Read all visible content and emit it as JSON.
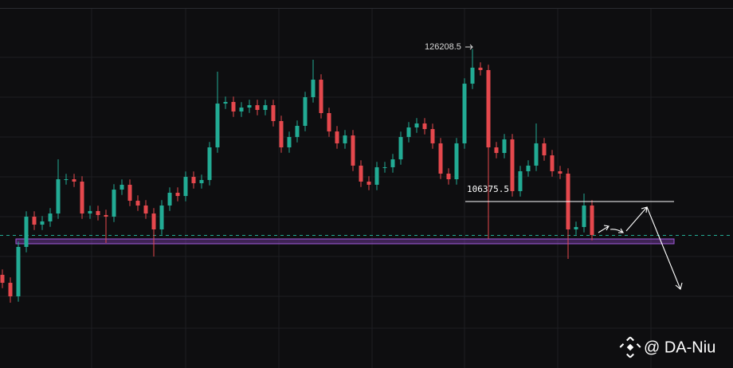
{
  "chart_data": {
    "type": "candlestick",
    "ylim": [
      84700,
      132600
    ],
    "up_color": "#22ab94",
    "down_color": "#e5484d",
    "peak": 126208.5,
    "level": 106375.5,
    "watermark": "@ DA-Niu",
    "open": [
      96830,
      95790,
      94030,
      100460,
      104400,
      103360,
      103780,
      104810,
      109270,
      109270,
      108960,
      104810,
      105130,
      104610,
      104400,
      107920,
      108550,
      106470,
      105850,
      104810,
      102740,
      105850,
      107510,
      107090,
      109580,
      108750,
      109170,
      113420,
      119120,
      119330,
      118090,
      118600,
      118910,
      118290,
      118910,
      116840,
      113420,
      114770,
      116220,
      119950,
      122230,
      117880,
      115490,
      113940,
      114970,
      111040,
      108960,
      108550,
      110830,
      110830,
      111860,
      114770,
      116010,
      116530,
      115800,
      113940,
      110000,
      109270,
      113940,
      121710,
      123790,
      123480,
      113420,
      112690,
      114460,
      107720,
      110310,
      111040,
      113940,
      112380,
      110310,
      110000,
      102740,
      103050,
      105850
    ],
    "high": [
      97530,
      96490,
      101160,
      105100,
      105100,
      104480,
      105510,
      111860,
      109970,
      109970,
      109660,
      105830,
      105830,
      105310,
      108620,
      109250,
      109250,
      107170,
      106550,
      105510,
      106550,
      108210,
      108210,
      110280,
      110280,
      109870,
      114120,
      123270,
      120030,
      120030,
      119300,
      119610,
      119610,
      119610,
      119610,
      117540,
      115470,
      116920,
      120650,
      124820,
      122930,
      118580,
      116190,
      115670,
      115670,
      111740,
      109660,
      111530,
      111530,
      112560,
      115470,
      116710,
      117230,
      117230,
      116500,
      114640,
      110700,
      114640,
      122410,
      126208.5,
      124490,
      124180,
      114120,
      115160,
      115160,
      111010,
      111740,
      116530,
      114640,
      113080,
      111010,
      110700,
      103750,
      107410,
      106550
    ],
    "low": [
      95090,
      93200,
      93330,
      99760,
      102660,
      102660,
      103080,
      104110,
      108570,
      108260,
      104110,
      104110,
      103910,
      100980,
      103700,
      107220,
      105770,
      105150,
      104110,
      99220,
      102040,
      105150,
      106390,
      106390,
      108050,
      108050,
      108470,
      112720,
      118420,
      117390,
      117390,
      117900,
      117590,
      117590,
      116140,
      112720,
      112720,
      114070,
      115520,
      119250,
      117180,
      114790,
      113240,
      113240,
      110340,
      108260,
      107850,
      107850,
      110130,
      110130,
      111160,
      114070,
      115310,
      115100,
      113240,
      109300,
      108570,
      108570,
      113240,
      121010,
      122780,
      101500,
      111990,
      111990,
      107020,
      107020,
      109610,
      110340,
      111680,
      109610,
      109300,
      98900,
      102040,
      102350,
      101310
    ],
    "close": [
      95790,
      94030,
      100460,
      104400,
      103360,
      103780,
      104810,
      109270,
      109270,
      108960,
      104810,
      105130,
      104610,
      104400,
      107920,
      108550,
      106470,
      105850,
      104810,
      102740,
      105850,
      107510,
      107090,
      109580,
      108750,
      109170,
      113420,
      119120,
      119330,
      118090,
      118600,
      118910,
      118290,
      118910,
      116840,
      113420,
      114770,
      116220,
      119950,
      122230,
      117880,
      115490,
      113940,
      114970,
      111040,
      108960,
      108550,
      110830,
      110830,
      111860,
      114770,
      116010,
      116530,
      115800,
      113940,
      110000,
      109270,
      113940,
      121710,
      123790,
      123480,
      113420,
      112690,
      114460,
      107720,
      110310,
      111040,
      113940,
      112380,
      110310,
      110000,
      102740,
      103050,
      105850,
      102010
    ]
  }
}
